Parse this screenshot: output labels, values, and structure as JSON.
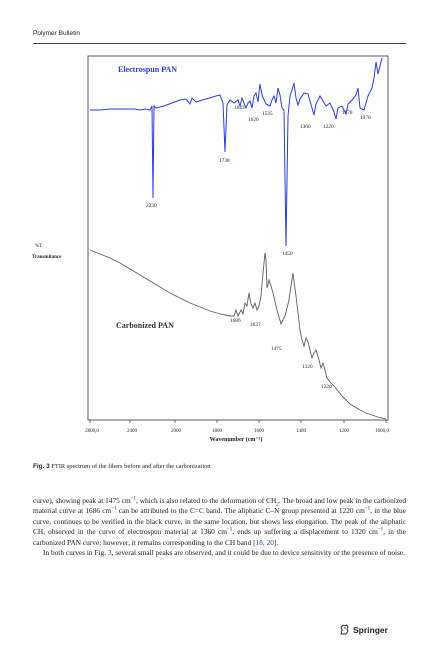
{
  "header": {
    "journal": "Polymer Bulletin"
  },
  "figure": {
    "labels": {
      "y_axis_top": "%T",
      "y_axis_bottom": "Transmitance",
      "x_axis": "Wavenumber (cm⁻¹)",
      "electrospun": "Electrospun PAN",
      "carbonized": "Carbonized PAN"
    },
    "ticks": [
      "2800,0",
      "2400",
      "2000",
      "1800",
      "1600",
      "1400",
      "1200",
      "1000,0"
    ],
    "peaks_electrospun": [
      "2230",
      "1738",
      "1643",
      "1620",
      "1535",
      "1450",
      "1360",
      "1220",
      "1170",
      "1070"
    ],
    "peaks_carbonized": [
      "1686",
      "1637",
      "1475",
      "1320",
      "1220"
    ],
    "colors": {
      "electrospun": "#2a3fd8",
      "carbonized": "#5f5f5f",
      "axis": "#333333"
    }
  },
  "caption": {
    "label": "Fig. 3",
    "text": "FTIR spectrum of the fibers before and after the carbonization"
  },
  "body": {
    "p1_a": "curve), showing peak at 1475 cm",
    "p1_b": ", which is also related to the deformation of CH",
    "p1_c": ". The broad and low peak in the carbonized material curve at 1686 cm",
    "p1_d": " can be attributed to the C=C band. The aliphatic C–N group presented at 1220 cm",
    "p1_e": ", in the blue curve, continues to be verified in the black curve, in the same location, but shows less elongation. The peak of the aliphatic CH, observed in the curve of electrospun material at 1360 cm",
    "p1_f": ", ends up suffering a displacement to 1320 cm",
    "p1_g": ", in the carbonized PAN curve; however, it remains corresponding to the CH band [",
    "p1_ref": "18, 20",
    "p1_h": "].",
    "p2_a": "In both curves in Fig. ",
    "p2_ref": "3",
    "p2_b": ", several small peaks are observed, and it could be due to device sensitivity or the presence of noise.",
    "sup_neg1": "−1",
    "sub_2": "2"
  },
  "footer": {
    "brand": "Springer"
  }
}
